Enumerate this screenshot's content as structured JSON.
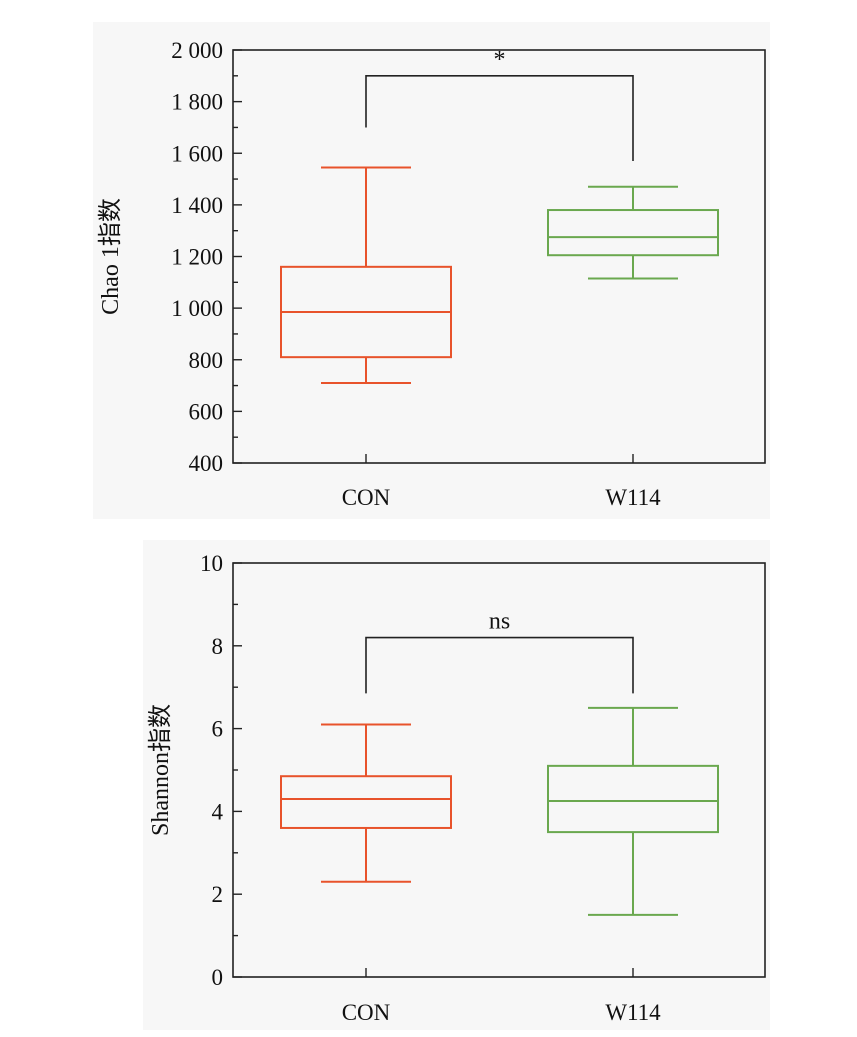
{
  "chart_data": [
    {
      "type": "box",
      "ylabel": "Chao 1指数",
      "ylim": [
        400,
        2000
      ],
      "yticks": [
        400,
        600,
        800,
        1000,
        1200,
        1400,
        1600,
        1800,
        2000
      ],
      "ytick_labels": [
        "400",
        "600",
        "800",
        "1 000",
        "1 200",
        "1 400",
        "1 600",
        "1 800",
        "2 000"
      ],
      "minor_step": 100,
      "categories": [
        "CON",
        "W114"
      ],
      "boxes": [
        {
          "name": "CON",
          "color": "#e8532b",
          "whisker_low": 710,
          "q1": 810,
          "median": 985,
          "q3": 1160,
          "whisker_high": 1545
        },
        {
          "name": "W114",
          "color": "#6aa84f",
          "whisker_low": 1115,
          "q1": 1205,
          "median": 1275,
          "q3": 1380,
          "whisker_high": 1470
        }
      ],
      "significance": {
        "label": "*",
        "bracket_y": 1900,
        "left_end": 1700,
        "right_end": 1570
      }
    },
    {
      "type": "box",
      "ylabel": "Shannon指数",
      "ylim": [
        0,
        10
      ],
      "yticks": [
        0,
        2,
        4,
        6,
        8,
        10
      ],
      "ytick_labels": [
        "0",
        "2",
        "4",
        "6",
        "8",
        "10"
      ],
      "minor_step": 1,
      "categories": [
        "CON",
        "W114"
      ],
      "boxes": [
        {
          "name": "CON",
          "color": "#e8532b",
          "whisker_low": 2.3,
          "q1": 3.6,
          "median": 4.3,
          "q3": 4.85,
          "whisker_high": 6.1
        },
        {
          "name": "W114",
          "color": "#6aa84f",
          "whisker_low": 1.5,
          "q1": 3.5,
          "median": 4.25,
          "q3": 5.1,
          "whisker_high": 6.5
        }
      ],
      "significance": {
        "label": "ns",
        "bracket_y": 8.2,
        "left_end": 6.85,
        "right_end": 6.85
      }
    }
  ]
}
